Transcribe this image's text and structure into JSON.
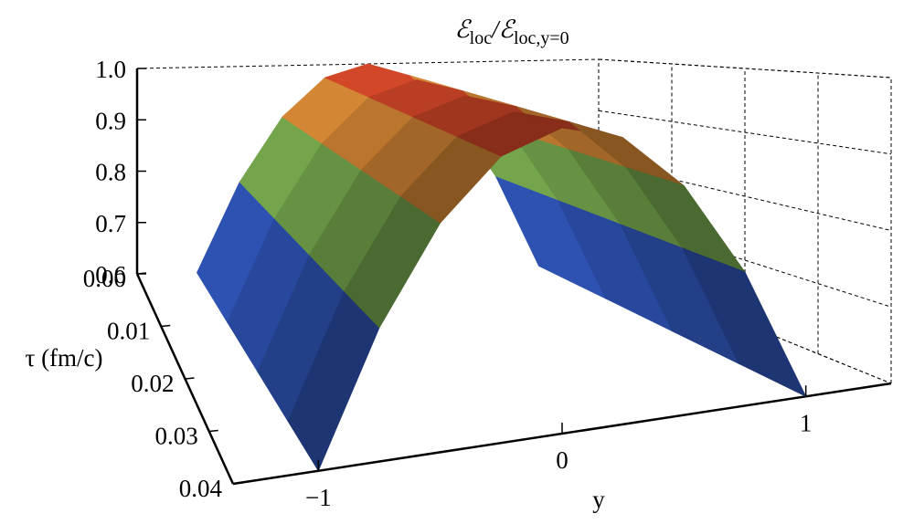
{
  "chart_data": {
    "type": "surface3d",
    "title": [
      "ℰ",
      "loc",
      "/ℰ",
      "loc,y=0"
    ],
    "x_label": "y",
    "tau_label": "τ (fm/c)",
    "x": [
      -1,
      -0.75,
      -0.5,
      -0.25,
      0,
      0.25,
      0.5,
      0.75,
      1
    ],
    "tau": [
      0,
      0.01,
      0.02,
      0.03,
      0.04
    ],
    "z": [
      [
        0.6,
        0.775,
        0.9,
        0.975,
        1.0,
        0.975,
        0.9,
        0.775,
        0.6
      ],
      [
        0.6,
        0.775,
        0.9,
        0.975,
        1.0,
        0.975,
        0.9,
        0.775,
        0.6
      ],
      [
        0.6,
        0.775,
        0.9,
        0.975,
        1.0,
        0.975,
        0.9,
        0.775,
        0.6
      ],
      [
        0.6,
        0.775,
        0.9,
        0.975,
        1.0,
        0.975,
        0.9,
        0.775,
        0.6
      ],
      [
        0.6,
        0.775,
        0.9,
        0.975,
        1.0,
        0.975,
        0.9,
        0.775,
        0.6
      ]
    ],
    "xlim": [
      -1.35,
      1.35
    ],
    "taulim": [
      0,
      0.04
    ],
    "zlim": [
      0.6,
      1.0
    ],
    "xticks": [
      {
        "value": -1,
        "label": "−1"
      },
      0,
      1
    ],
    "tauticks": [
      {
        "value": 0,
        "label": "0.00"
      },
      0.01,
      0.02,
      0.03,
      0.04
    ],
    "zticks": [
      0.6,
      0.7,
      0.8,
      0.9,
      {
        "value": 1,
        "label": "1.0"
      }
    ],
    "colorscale": [
      "#3a1f6e",
      "#2f5fc8",
      "#3fa55a",
      "#e0c040",
      "#e03a28"
    ],
    "grid": true
  }
}
